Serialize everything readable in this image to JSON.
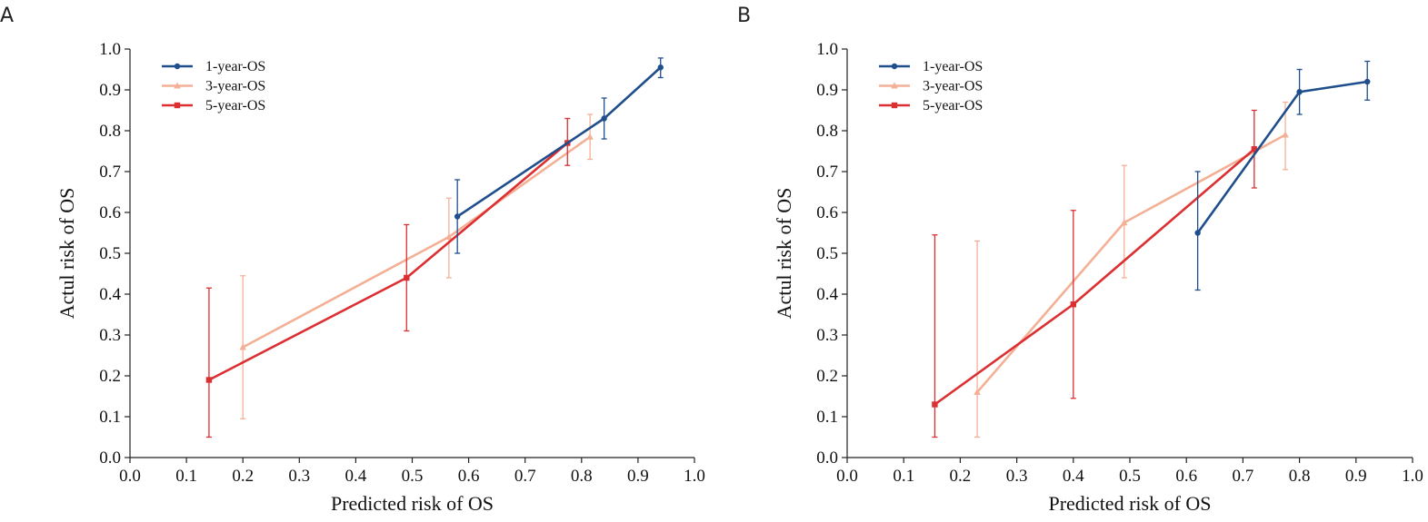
{
  "colors": {
    "one_year": "#1f4e8c",
    "three_year": "#f4b095",
    "five_year": "#dc2f32",
    "axis": "#222222"
  },
  "chart_data": [
    {
      "type": "line",
      "panel_label": "A",
      "xlabel": "Predicted risk of OS",
      "ylabel": "Actul risk of OS",
      "xlim": [
        0,
        1
      ],
      "ylim": [
        0,
        1
      ],
      "xticks": [
        "0.0",
        "0.1",
        "0.2",
        "0.3",
        "0.4",
        "0.5",
        "0.6",
        "0.7",
        "0.8",
        "0.9",
        "1.0"
      ],
      "yticks": [
        "0.0",
        "0.1",
        "0.2",
        "0.3",
        "0.4",
        "0.5",
        "0.6",
        "0.7",
        "0.8",
        "0.9",
        "1.0"
      ],
      "legend_position": "top-left",
      "series": [
        {
          "name": "1-year-OS",
          "color_key": "one_year",
          "marker": "circle",
          "points": [
            {
              "x": 0.58,
              "y": 0.59,
              "lo": 0.5,
              "hi": 0.68
            },
            {
              "x": 0.84,
              "y": 0.83,
              "lo": 0.78,
              "hi": 0.88
            },
            {
              "x": 0.94,
              "y": 0.955,
              "lo": 0.93,
              "hi": 0.978
            }
          ]
        },
        {
          "name": "3-year-OS",
          "color_key": "three_year",
          "marker": "triangle",
          "points": [
            {
              "x": 0.2,
              "y": 0.27,
              "lo": 0.095,
              "hi": 0.445
            },
            {
              "x": 0.565,
              "y": 0.54,
              "lo": 0.44,
              "hi": 0.635
            },
            {
              "x": 0.815,
              "y": 0.785,
              "lo": 0.73,
              "hi": 0.84
            }
          ]
        },
        {
          "name": "5-year-OS",
          "color_key": "five_year",
          "marker": "square",
          "points": [
            {
              "x": 0.14,
              "y": 0.19,
              "lo": 0.05,
              "hi": 0.415
            },
            {
              "x": 0.49,
              "y": 0.44,
              "lo": 0.31,
              "hi": 0.57
            },
            {
              "x": 0.775,
              "y": 0.77,
              "lo": 0.715,
              "hi": 0.83
            }
          ]
        }
      ]
    },
    {
      "type": "line",
      "panel_label": "B",
      "xlabel": "Predicted risk of OS",
      "ylabel": "Actul risk of OS",
      "xlim": [
        0,
        1
      ],
      "ylim": [
        0,
        1
      ],
      "xticks": [
        "0.0",
        "0.1",
        "0.2",
        "0.3",
        "0.4",
        "0.5",
        "0.6",
        "0.7",
        "0.8",
        "0.9",
        "1.0"
      ],
      "yticks": [
        "0.0",
        "0.1",
        "0.2",
        "0.3",
        "0.4",
        "0.5",
        "0.6",
        "0.7",
        "0.8",
        "0.9",
        "1.0"
      ],
      "legend_position": "top-left",
      "series": [
        {
          "name": "1-year-OS",
          "color_key": "one_year",
          "marker": "circle",
          "points": [
            {
              "x": 0.62,
              "y": 0.55,
              "lo": 0.41,
              "hi": 0.7
            },
            {
              "x": 0.8,
              "y": 0.895,
              "lo": 0.84,
              "hi": 0.95
            },
            {
              "x": 0.92,
              "y": 0.92,
              "lo": 0.875,
              "hi": 0.97
            }
          ]
        },
        {
          "name": "3-year-OS",
          "color_key": "three_year",
          "marker": "triangle",
          "points": [
            {
              "x": 0.23,
              "y": 0.16,
              "lo": 0.05,
              "hi": 0.53
            },
            {
              "x": 0.49,
              "y": 0.575,
              "lo": 0.44,
              "hi": 0.715
            },
            {
              "x": 0.775,
              "y": 0.79,
              "lo": 0.705,
              "hi": 0.87
            }
          ]
        },
        {
          "name": "5-year-OS",
          "color_key": "five_year",
          "marker": "square",
          "points": [
            {
              "x": 0.155,
              "y": 0.13,
              "lo": 0.05,
              "hi": 0.545
            },
            {
              "x": 0.4,
              "y": 0.375,
              "lo": 0.145,
              "hi": 0.605
            },
            {
              "x": 0.72,
              "y": 0.755,
              "lo": 0.66,
              "hi": 0.85
            }
          ]
        }
      ]
    }
  ]
}
